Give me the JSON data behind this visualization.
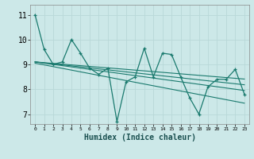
{
  "background_color": "#cce8e8",
  "grid_color": "#b8d8d8",
  "line_color": "#1a7a6e",
  "xlabel": "Humidex (Indice chaleur)",
  "ylim": [
    6.6,
    11.4
  ],
  "xlim": [
    -0.5,
    23.5
  ],
  "yticks": [
    7,
    8,
    9,
    10,
    11
  ],
  "xticks": [
    0,
    1,
    2,
    3,
    4,
    5,
    6,
    7,
    8,
    9,
    10,
    11,
    12,
    13,
    14,
    15,
    16,
    17,
    18,
    19,
    20,
    21,
    22,
    23
  ],
  "series": [
    [
      11.0,
      9.6,
      9.0,
      9.1,
      10.0,
      9.45,
      8.85,
      8.6,
      8.85,
      6.7,
      8.3,
      8.5,
      9.65,
      8.5,
      9.45,
      9.4,
      8.5,
      7.65,
      7.0,
      8.1,
      8.4,
      8.4,
      8.8,
      7.8
    ],
    [
      9.05,
      8.98,
      8.91,
      8.84,
      8.77,
      8.7,
      8.63,
      8.56,
      8.49,
      8.42,
      8.35,
      8.28,
      8.21,
      8.14,
      8.07,
      8.0,
      7.93,
      7.86,
      7.79,
      7.72,
      7.65,
      7.58,
      7.51,
      7.44
    ],
    [
      9.1,
      9.05,
      9.0,
      8.95,
      8.9,
      8.85,
      8.8,
      8.75,
      8.7,
      8.65,
      8.6,
      8.55,
      8.5,
      8.45,
      8.4,
      8.35,
      8.3,
      8.25,
      8.2,
      8.15,
      8.1,
      8.05,
      8.0,
      7.95
    ],
    [
      9.1,
      9.07,
      9.04,
      9.01,
      8.98,
      8.95,
      8.92,
      8.89,
      8.86,
      8.83,
      8.8,
      8.77,
      8.74,
      8.71,
      8.68,
      8.65,
      8.62,
      8.59,
      8.56,
      8.53,
      8.5,
      8.47,
      8.44,
      8.41
    ],
    [
      9.1,
      9.06,
      9.02,
      8.98,
      8.94,
      8.9,
      8.86,
      8.82,
      8.78,
      8.74,
      8.7,
      8.66,
      8.62,
      8.58,
      8.54,
      8.5,
      8.46,
      8.42,
      8.38,
      8.34,
      8.3,
      8.26,
      8.22,
      8.18
    ]
  ],
  "ytick_fontsize": 7,
  "xtick_fontsize": 4.5,
  "xlabel_fontsize": 7
}
